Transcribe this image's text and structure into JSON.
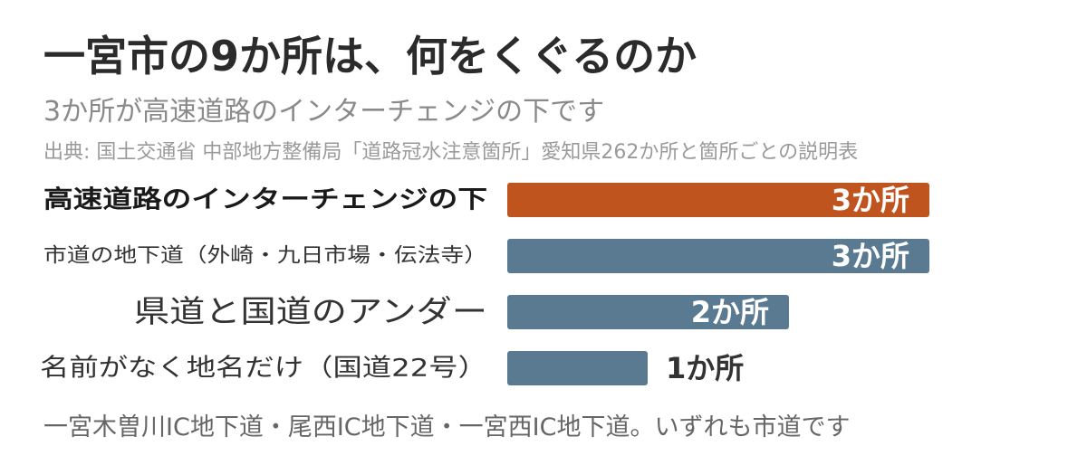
{
  "header": {
    "title": "一宮市の9か所は、何をくぐるのか",
    "subtitle": "3か所が高速道路のインターチェンジの下です",
    "source": "出典: 国土交通省 中部地方整備局「道路冠水注意箇所」愛知県262か所と箇所ごとの説明表"
  },
  "chart_data": {
    "type": "bar",
    "orientation": "horizontal",
    "categories": [
      "高速道路のインターチェンジの下",
      "市道の地下道（外崎・九日市場・伝法寺）",
      "県道と国道のアンダー",
      "名前がなく地名だけ（国道22号）"
    ],
    "values": [
      3,
      3,
      2,
      1
    ],
    "value_labels": [
      "3か所",
      "3か所",
      "2か所",
      "1か所"
    ],
    "highlight_index": 0,
    "colors": {
      "highlight": "#c0541f",
      "default": "#5a7a91",
      "label_inside": "#ffffff",
      "label_outside": "#333333",
      "category_bold": "#1a1a1a",
      "category_normal": "#333333"
    },
    "xlim": [
      0,
      3
    ],
    "grid": false,
    "legend": "none"
  },
  "footnote": "一宮木曽川IC地下道・尾西IC地下道・一宮西IC地下道。いずれも市道です"
}
